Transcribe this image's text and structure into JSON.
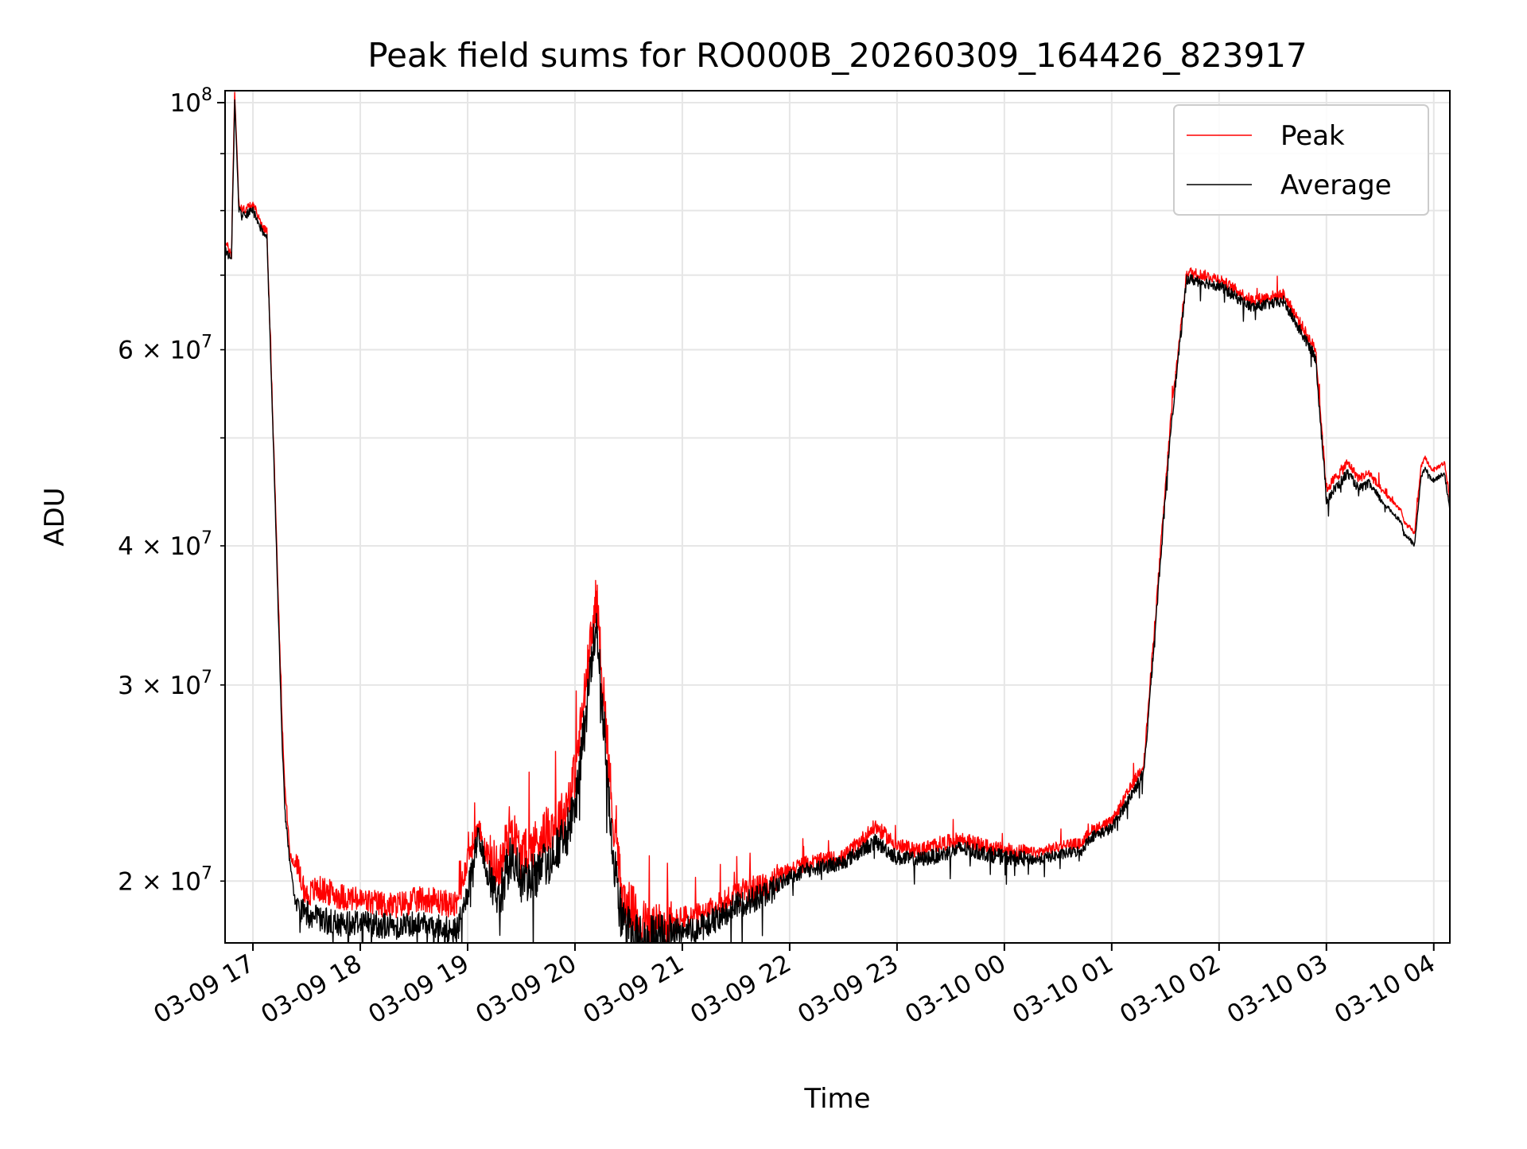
{
  "chart_data": {
    "type": "line",
    "title": "Peak field sums for RO000B_20260309_164426_823917",
    "xlabel": "Time",
    "ylabel": "ADU",
    "y_scale": "log",
    "ylim": [
      17600000,
      102500000
    ],
    "xlim": [
      "03-09 16:44:26",
      "03-10 04:09:00"
    ],
    "grid": true,
    "legend_position": "top-right",
    "x_ticks": [
      "03-09 17",
      "03-09 18",
      "03-09 19",
      "03-09 20",
      "03-09 21",
      "03-09 22",
      "03-09 23",
      "03-10 00",
      "03-10 01",
      "03-10 02",
      "03-10 03",
      "03-10 04"
    ],
    "y_major_ticks": [
      {
        "value": 100000000,
        "mantissa": "",
        "exponent": "8"
      }
    ],
    "y_minor_ticks": [
      {
        "value": 20000000,
        "mantissa": "2",
        "exponent": "7"
      },
      {
        "value": 30000000,
        "mantissa": "3",
        "exponent": "7"
      },
      {
        "value": 40000000,
        "mantissa": "4",
        "exponent": "7"
      },
      {
        "value": 50000000,
        "mantissa": "",
        "exponent": ""
      },
      {
        "value": 60000000,
        "mantissa": "6",
        "exponent": "7"
      },
      {
        "value": 70000000,
        "mantissa": "",
        "exponent": ""
      },
      {
        "value": 80000000,
        "mantissa": "",
        "exponent": ""
      },
      {
        "value": 90000000,
        "mantissa": "",
        "exponent": ""
      }
    ],
    "x_hours": [
      16.74,
      16.8,
      16.83,
      16.87,
      16.9,
      17.0,
      17.1,
      17.13,
      17.2,
      17.27,
      17.3,
      17.35,
      17.4,
      17.5,
      17.6,
      17.8,
      18.0,
      18.3,
      18.6,
      18.9,
      19.0,
      19.1,
      19.2,
      19.3,
      19.4,
      19.5,
      19.7,
      19.9,
      20.0,
      20.2,
      20.35,
      20.4,
      20.43,
      20.47,
      20.52,
      20.6,
      20.7,
      20.9,
      21.0,
      21.2,
      21.5,
      21.8,
      21.9,
      22.0,
      22.2,
      22.5,
      22.8,
      23.0,
      23.2,
      23.4,
      23.6,
      23.8,
      24.0,
      24.3,
      24.6,
      24.72,
      24.8,
      25.0,
      25.3,
      25.55,
      25.7,
      26.0,
      26.3,
      26.6,
      26.9,
      27.0,
      27.2,
      27.3,
      27.4,
      27.5,
      27.6,
      27.7,
      27.72,
      27.78,
      27.82,
      27.88,
      27.92,
      27.97,
      28.0,
      28.1,
      28.15
    ],
    "series": [
      {
        "name": "Peak",
        "color": "#ff0000",
        "values": [
          75000000,
          73000000,
          102500000,
          81000000,
          80000000,
          81000000,
          77000000,
          77000000,
          47000000,
          28000000,
          24000000,
          21000000,
          20700000,
          19400000,
          19700000,
          19400000,
          19200000,
          19000000,
          19300000,
          19000000,
          21000000,
          22200000,
          21000000,
          20500000,
          22500000,
          21000000,
          22000000,
          23000000,
          25000000,
          36000000,
          23000000,
          21000000,
          19700000,
          19000000,
          19000000,
          18400000,
          18200000,
          18300000,
          18500000,
          18600000,
          19500000,
          19800000,
          20200000,
          20500000,
          20800000,
          21000000,
          22400000,
          21500000,
          21300000,
          21600000,
          21800000,
          21500000,
          21300000,
          21200000,
          21600000,
          21600000,
          22200000,
          22600000,
          25500000,
          52000000,
          70500000,
          69500000,
          66500000,
          67300000,
          60000000,
          45000000,
          47500000,
          46000000,
          46500000,
          45000000,
          44000000,
          43000000,
          42000000,
          41500000,
          41000000,
          47000000,
          48000000,
          47000000,
          46800000,
          47500000,
          44000000
        ]
      },
      {
        "name": "Average",
        "color": "#000000",
        "values": [
          74000000,
          72000000,
          100500000,
          80000000,
          79000000,
          80000000,
          76000000,
          76000000,
          46000000,
          27000000,
          23000000,
          20500000,
          19000000,
          18700000,
          18500000,
          18300000,
          18400000,
          18200000,
          18400000,
          18000000,
          19500000,
          22000000,
          20000000,
          19300000,
          21000000,
          20000000,
          20500000,
          21800000,
          23000000,
          34500000,
          21500000,
          19500000,
          18600000,
          18200000,
          18000000,
          17800000,
          17700000,
          17900000,
          18100000,
          18200000,
          19000000,
          19500000,
          19900000,
          20200000,
          20500000,
          20800000,
          21700000,
          21000000,
          20900000,
          21100000,
          21400000,
          21200000,
          21000000,
          20900000,
          21200000,
          21300000,
          21900000,
          22300000,
          25000000,
          51000000,
          69500000,
          68500000,
          65500000,
          66300000,
          59000000,
          44000000,
          46500000,
          45000000,
          45500000,
          44000000,
          43000000,
          42000000,
          41000000,
          40500000,
          40000000,
          46000000,
          47000000,
          46000000,
          45800000,
          46500000,
          43000000
        ]
      }
    ]
  }
}
